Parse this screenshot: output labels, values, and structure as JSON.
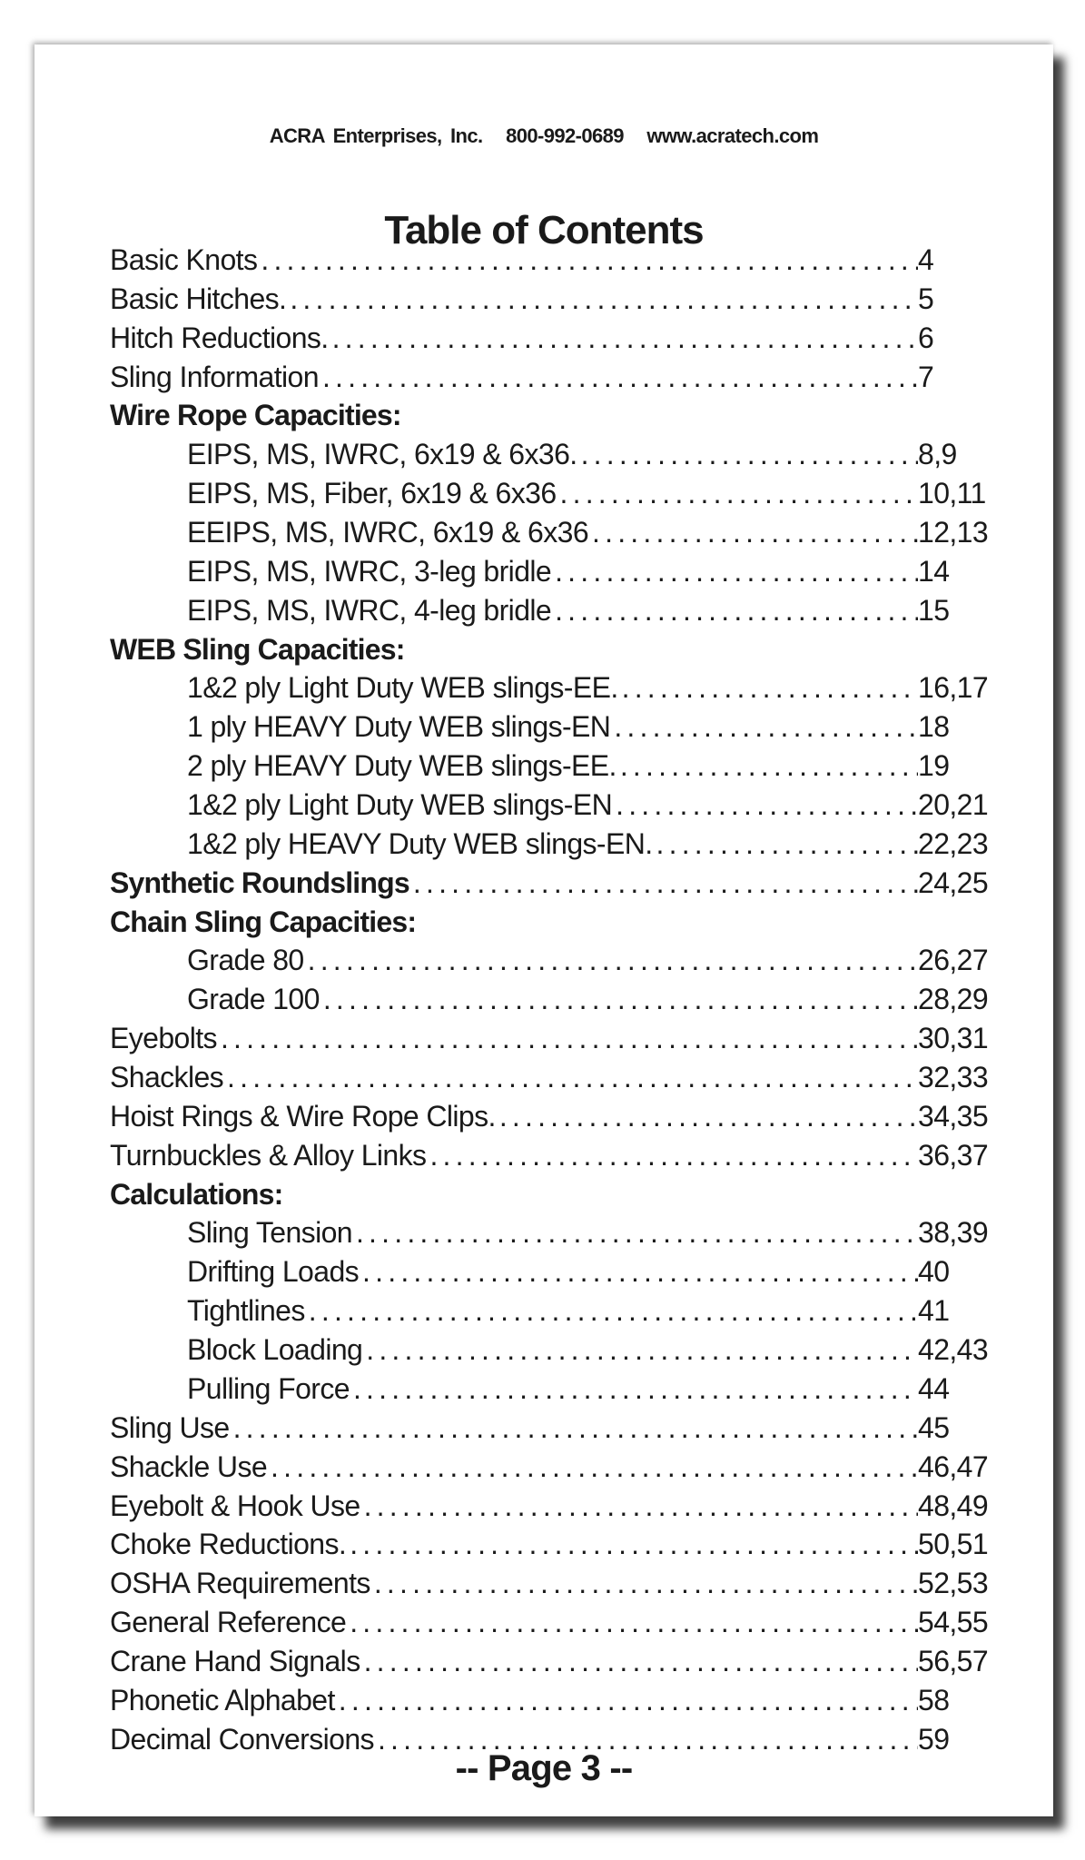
{
  "header": {
    "company": "ACRA Enterprises, Inc.",
    "phone": "800-992-0689",
    "website": "www.acratech.com"
  },
  "title": "Table of Contents",
  "entries": [
    {
      "label": "Basic Knots",
      "page": "4",
      "level": "top"
    },
    {
      "label": "Basic Hitches.",
      "page": "5",
      "level": "top"
    },
    {
      "label": "Hitch Reductions.",
      "page": "6",
      "level": "top"
    },
    {
      "label": "Sling Information",
      "page": "7",
      "level": "top"
    },
    {
      "label": "Wire Rope Capacities:",
      "page": "",
      "level": "heading"
    },
    {
      "label": "EIPS, MS, IWRC, 6x19 & 6x36.",
      "page": "8,9",
      "level": "sub"
    },
    {
      "label": "EIPS, MS, Fiber, 6x19 & 6x36",
      "page": "10,11",
      "level": "sub"
    },
    {
      "label": "EEIPS, MS, IWRC, 6x19 & 6x36",
      "page": "12,13",
      "level": "sub"
    },
    {
      "label": "EIPS, MS, IWRC, 3-leg bridle",
      "page": "14",
      "level": "sub"
    },
    {
      "label": "EIPS, MS, IWRC, 4-leg bridle",
      "page": "15",
      "level": "sub"
    },
    {
      "label": "WEB Sling Capacities:",
      "page": "",
      "level": "heading"
    },
    {
      "label": "1&2 ply Light Duty WEB slings-EE.",
      "page": "16,17",
      "level": "sub"
    },
    {
      "label": "1 ply HEAVY Duty WEB slings-EN",
      "page": "18",
      "level": "sub"
    },
    {
      "label": "2 ply HEAVY Duty WEB slings-EE.",
      "page": "19",
      "level": "sub"
    },
    {
      "label": "1&2 ply Light Duty WEB slings-EN",
      "page": "20,21",
      "level": "sub"
    },
    {
      "label": "1&2 ply HEAVY Duty WEB slings-EN.",
      "page": "22,23",
      "level": "sub"
    },
    {
      "label": "Synthetic Roundslings",
      "page": "24,25",
      "level": "bold"
    },
    {
      "label": "Chain Sling Capacities:",
      "page": "",
      "level": "heading"
    },
    {
      "label": "Grade 80",
      "page": "26,27",
      "level": "sub"
    },
    {
      "label": "Grade 100",
      "page": "28,29",
      "level": "sub"
    },
    {
      "label": "Eyebolts",
      "page": "30,31",
      "level": "top"
    },
    {
      "label": "Shackles",
      "page": "32,33",
      "level": "top"
    },
    {
      "label": "Hoist Rings & Wire Rope Clips.",
      "page": "34,35",
      "level": "top"
    },
    {
      "label": "Turnbuckles & Alloy Links",
      "page": "36,37",
      "level": "top"
    },
    {
      "label": "Calculations:",
      "page": "",
      "level": "heading"
    },
    {
      "label": "Sling Tension",
      "page": "38,39",
      "level": "sub"
    },
    {
      "label": "Drifting Loads",
      "page": "40",
      "level": "sub"
    },
    {
      "label": "Tightlines",
      "page": "41",
      "level": "sub"
    },
    {
      "label": "Block Loading",
      "page": "42,43",
      "level": "sub"
    },
    {
      "label": "Pulling Force",
      "page": "44",
      "level": "sub"
    },
    {
      "label": "Sling Use",
      "page": "45",
      "level": "top"
    },
    {
      "label": "Shackle Use",
      "page": "46,47",
      "level": "top"
    },
    {
      "label": "Eyebolt & Hook Use",
      "page": "48,49",
      "level": "top"
    },
    {
      "label": "Choke Reductions.",
      "page": "50,51",
      "level": "top"
    },
    {
      "label": "OSHA Requirements",
      "page": "52,53",
      "level": "top"
    },
    {
      "label": "General Reference",
      "page": "54,55",
      "level": "top"
    },
    {
      "label": "Crane Hand Signals",
      "page": "56,57",
      "level": "top"
    },
    {
      "label": "Phonetic Alphabet",
      "page": "58",
      "level": "top"
    },
    {
      "label": "Decimal Conversions",
      "page": "59",
      "level": "top"
    }
  ],
  "footer": "-- Page 3 --"
}
